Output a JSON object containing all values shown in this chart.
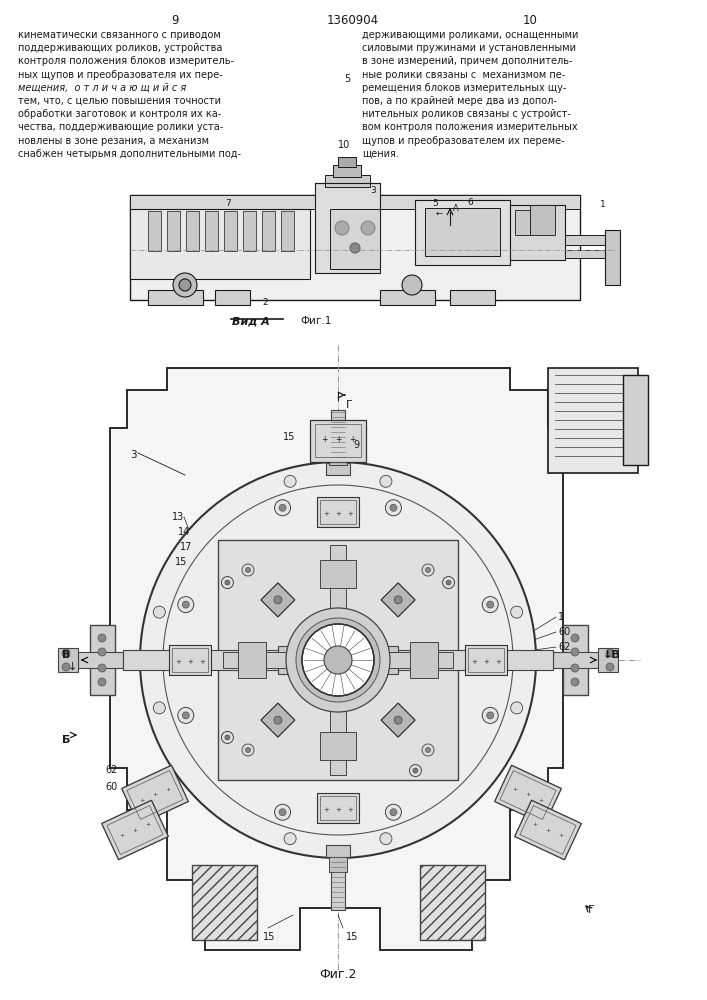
{
  "page_numbers": [
    "9",
    "10"
  ],
  "patent_number": "1360904",
  "text_left": [
    "кинематически связанного с приводом",
    "поддерживающих роликов, устройства",
    "контроля положения блоков измеритель-",
    "ных щупов и преобразователя их пере-",
    "мещения,  о т л и ч а ю щ и й с я",
    "тем, что, с целью повышения точности",
    "обработки заготовок и контроля их ка-",
    "чества, поддерживающие ролики уста-",
    "новлены в зоне резания, а механизм",
    "снабжен четырьмя дополнительными под-"
  ],
  "text_right": [
    "держивающими роликами, оснащенными",
    "силовыми пружинами и установленными",
    "в зоне измерений, причем дополнитель-",
    "ные ролики связаны с  механизмом пе-",
    "ремещения блоков измерительных щу-",
    "пов, а по крайней мере два из допол-",
    "нительных роликов связаны с устройст-",
    "вом контроля положения измерительных",
    "щупов и преобразователем их переме-",
    "щения."
  ],
  "vid_a_label": "Вид А",
  "fig1_label": "Фиг.1",
  "fig2_label": "Фиг.2",
  "bg_color": "#ffffff",
  "line_color": "#1a1a1a",
  "text_color": "#1a1a1a"
}
